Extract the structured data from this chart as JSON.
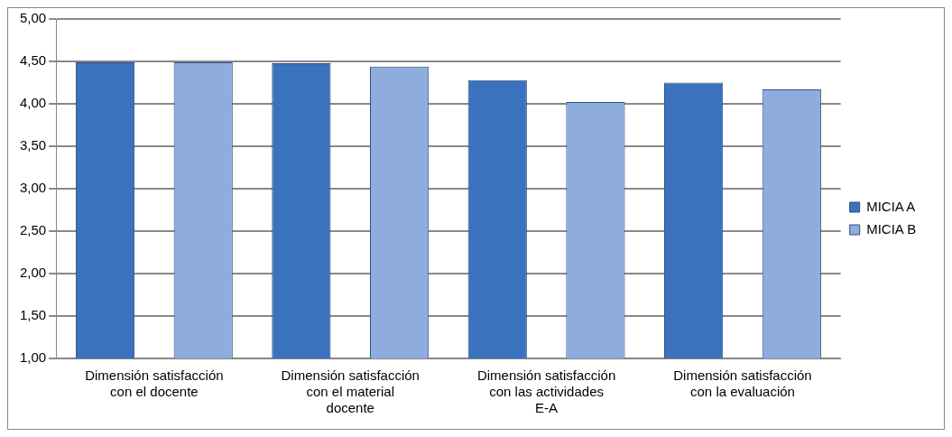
{
  "chart_data": {
    "type": "bar",
    "categories": [
      "Dimensión satisfacción con el docente",
      "Dimensión satisfacción con el material docente",
      "Dimensión satisfacción con las actividades E-A",
      "Dimensión satisfacción con la evaluación"
    ],
    "series": [
      {
        "name": "MICIA A",
        "color": "#3a72be",
        "values": [
          4.49,
          4.48,
          4.28,
          4.25
        ]
      },
      {
        "name": "MICIA B",
        "color": "#8eacdc",
        "values": [
          4.49,
          4.44,
          4.02,
          4.17
        ]
      }
    ],
    "ylim": [
      1,
      5
    ],
    "yticks": [
      {
        "value": 1,
        "label": "1,00"
      },
      {
        "value": 1.5,
        "label": "1,50"
      },
      {
        "value": 2,
        "label": "2,00"
      },
      {
        "value": 2.5,
        "label": "2,50"
      },
      {
        "value": 3,
        "label": "3,00"
      },
      {
        "value": 3.5,
        "label": "3,50"
      },
      {
        "value": 4,
        "label": "4,00"
      },
      {
        "value": 4.5,
        "label": "4,50"
      },
      {
        "value": 5,
        "label": "5,00"
      }
    ],
    "grid": "y",
    "legend": "right"
  }
}
